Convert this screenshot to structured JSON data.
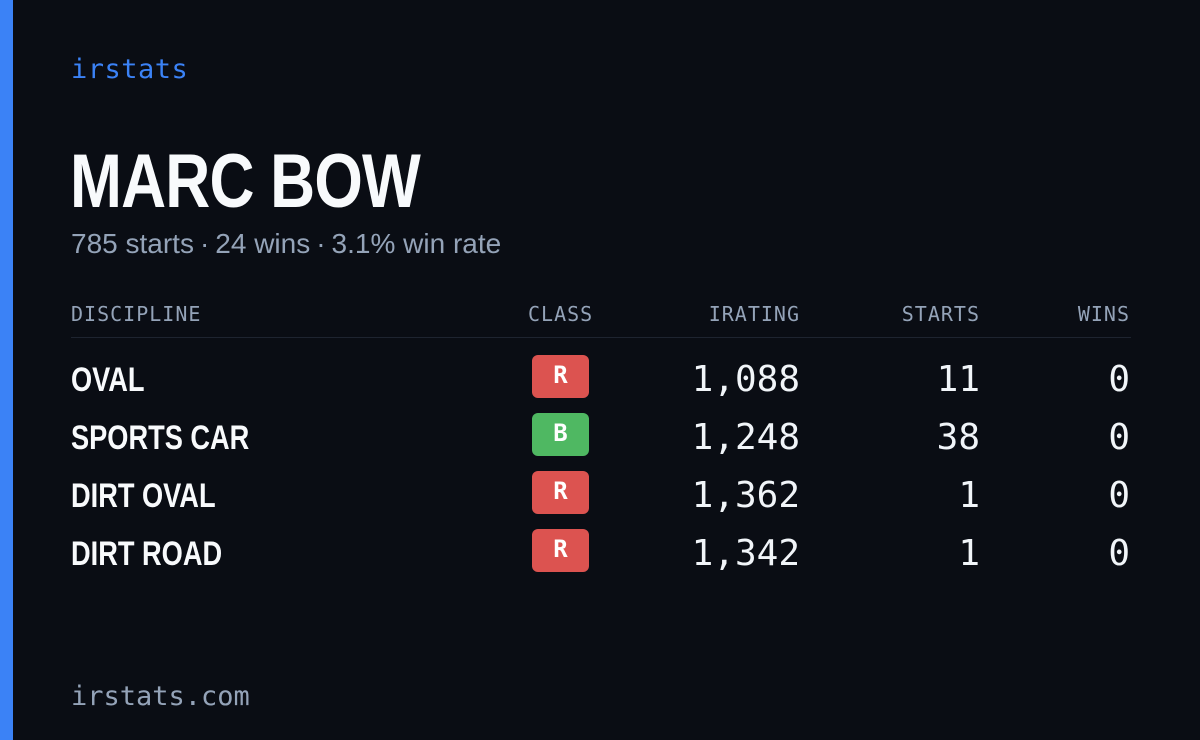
{
  "brand": "irstats",
  "driver": {
    "name": "MARC BOW"
  },
  "summary": {
    "starts": "785 starts",
    "wins": "24 wins",
    "win_rate": "3.1% win rate",
    "separator": "·"
  },
  "table": {
    "headers": {
      "discipline": "DISCIPLINE",
      "class": "CLASS",
      "irating": "IRATING",
      "starts": "STARTS",
      "wins": "WINS"
    },
    "rows": [
      {
        "discipline": "OVAL",
        "class": "R",
        "class_color": "#dc5350",
        "irating": "1,088",
        "starts": "11",
        "wins": "0"
      },
      {
        "discipline": "SPORTS CAR",
        "class": "B",
        "class_color": "#4fb862",
        "irating": "1,248",
        "starts": "38",
        "wins": "0"
      },
      {
        "discipline": "DIRT OVAL",
        "class": "R",
        "class_color": "#dc5350",
        "irating": "1,362",
        "starts": "1",
        "wins": "0"
      },
      {
        "discipline": "DIRT ROAD",
        "class": "R",
        "class_color": "#dc5350",
        "irating": "1,342",
        "starts": "1",
        "wins": "0"
      }
    ]
  },
  "footer": "irstats.com",
  "colors": {
    "accent": "#3b82f6",
    "background": "#0a0d14",
    "class_r": "#dc5350",
    "class_b": "#4fb862"
  }
}
